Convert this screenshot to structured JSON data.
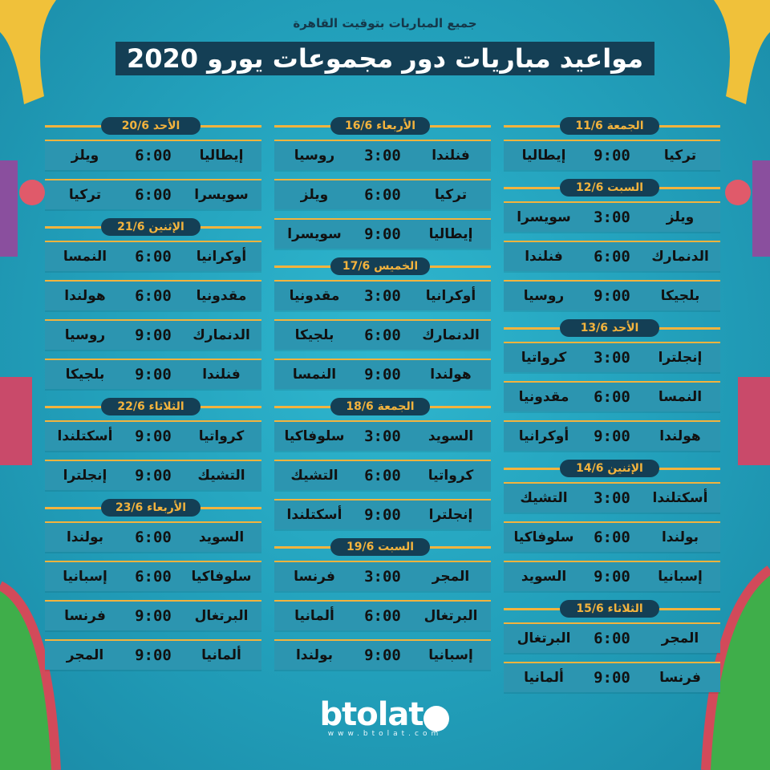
{
  "header": {
    "subtitle": "جميع المباريات بتوقيت القاهرة",
    "title": "مواعيد مباريات دور مجموعات يورو 2020"
  },
  "columns": [
    {
      "days": [
        {
          "label": "الجمعة 11/6",
          "matches": [
            {
              "home": "تركيا",
              "time": "9:00",
              "away": "إيطاليا"
            }
          ]
        },
        {
          "label": "السبت 12/6",
          "matches": [
            {
              "home": "ويلز",
              "time": "3:00",
              "away": "سويسرا"
            },
            {
              "home": "الدنمارك",
              "time": "6:00",
              "away": "فنلندا"
            },
            {
              "home": "بلجيكا",
              "time": "9:00",
              "away": "روسيا"
            }
          ]
        },
        {
          "label": "الأحد 13/6",
          "matches": [
            {
              "home": "إنجلترا",
              "time": "3:00",
              "away": "كرواتيا"
            },
            {
              "home": "النمسا",
              "time": "6:00",
              "away": "مقدونيا"
            },
            {
              "home": "هولندا",
              "time": "9:00",
              "away": "أوكرانيا"
            }
          ]
        },
        {
          "label": "الإثنين 14/6",
          "matches": [
            {
              "home": "أسكتلندا",
              "time": "3:00",
              "away": "التشيك"
            },
            {
              "home": "بولندا",
              "time": "6:00",
              "away": "سلوفاكيا"
            },
            {
              "home": "إسبانيا",
              "time": "9:00",
              "away": "السويد"
            }
          ]
        },
        {
          "label": "الثلاثاء 15/6",
          "matches": [
            {
              "home": "المجر",
              "time": "6:00",
              "away": "البرتغال"
            },
            {
              "home": "فرنسا",
              "time": "9:00",
              "away": "ألمانيا"
            }
          ]
        }
      ]
    },
    {
      "days": [
        {
          "label": "الأربعاء 16/6",
          "matches": [
            {
              "home": "فنلندا",
              "time": "3:00",
              "away": "روسيا"
            },
            {
              "home": "تركيا",
              "time": "6:00",
              "away": "ويلز"
            },
            {
              "home": "إيطاليا",
              "time": "9:00",
              "away": "سويسرا"
            }
          ]
        },
        {
          "label": "الخميس 17/6",
          "matches": [
            {
              "home": "أوكرانيا",
              "time": "3:00",
              "away": "مقدونيا"
            },
            {
              "home": "الدنمارك",
              "time": "6:00",
              "away": "بلجيكا"
            },
            {
              "home": "هولندا",
              "time": "9:00",
              "away": "النمسا"
            }
          ]
        },
        {
          "label": "الجمعة 18/6",
          "matches": [
            {
              "home": "السويد",
              "time": "3:00",
              "away": "سلوفاكيا"
            },
            {
              "home": "كرواتيا",
              "time": "6:00",
              "away": "التشيك"
            },
            {
              "home": "إنجلترا",
              "time": "9:00",
              "away": "أسكتلندا"
            }
          ]
        },
        {
          "label": "السبت 19/6",
          "matches": [
            {
              "home": "المجر",
              "time": "3:00",
              "away": "فرنسا"
            },
            {
              "home": "البرتغال",
              "time": "6:00",
              "away": "ألمانيا"
            },
            {
              "home": "إسبانيا",
              "time": "9:00",
              "away": "بولندا"
            }
          ]
        }
      ]
    },
    {
      "days": [
        {
          "label": "الأحد 20/6",
          "matches": [
            {
              "home": "إيطاليا",
              "time": "6:00",
              "away": "ويلز"
            },
            {
              "home": "سويسرا",
              "time": "6:00",
              "away": "تركيا"
            }
          ]
        },
        {
          "label": "الإثنين 21/6",
          "matches": [
            {
              "home": "أوكرانيا",
              "time": "6:00",
              "away": "النمسا"
            },
            {
              "home": "مقدونيا",
              "time": "6:00",
              "away": "هولندا"
            },
            {
              "home": "الدنمارك",
              "time": "9:00",
              "away": "روسيا"
            },
            {
              "home": "فنلندا",
              "time": "9:00",
              "away": "بلجيكا"
            }
          ]
        },
        {
          "label": "الثلاثاء 22/6",
          "matches": [
            {
              "home": "كرواتيا",
              "time": "9:00",
              "away": "أسكتلندا"
            },
            {
              "home": "التشيك",
              "time": "9:00",
              "away": "إنجلترا"
            }
          ]
        },
        {
          "label": "الأربعاء 23/6",
          "matches": [
            {
              "home": "السويد",
              "time": "6:00",
              "away": "بولندا"
            },
            {
              "home": "سلوفاكيا",
              "time": "6:00",
              "away": "إسبانيا"
            },
            {
              "home": "البرتغال",
              "time": "9:00",
              "away": "فرنسا"
            },
            {
              "home": "ألمانيا",
              "time": "9:00",
              "away": "المجر"
            }
          ]
        }
      ]
    }
  ],
  "logo": {
    "word": "btolat",
    "site": "www.btolat.com"
  },
  "colors": {
    "background": "#229fba",
    "accent": "#f3b33d",
    "pill": "#143f55",
    "row": "#2c95b0"
  }
}
